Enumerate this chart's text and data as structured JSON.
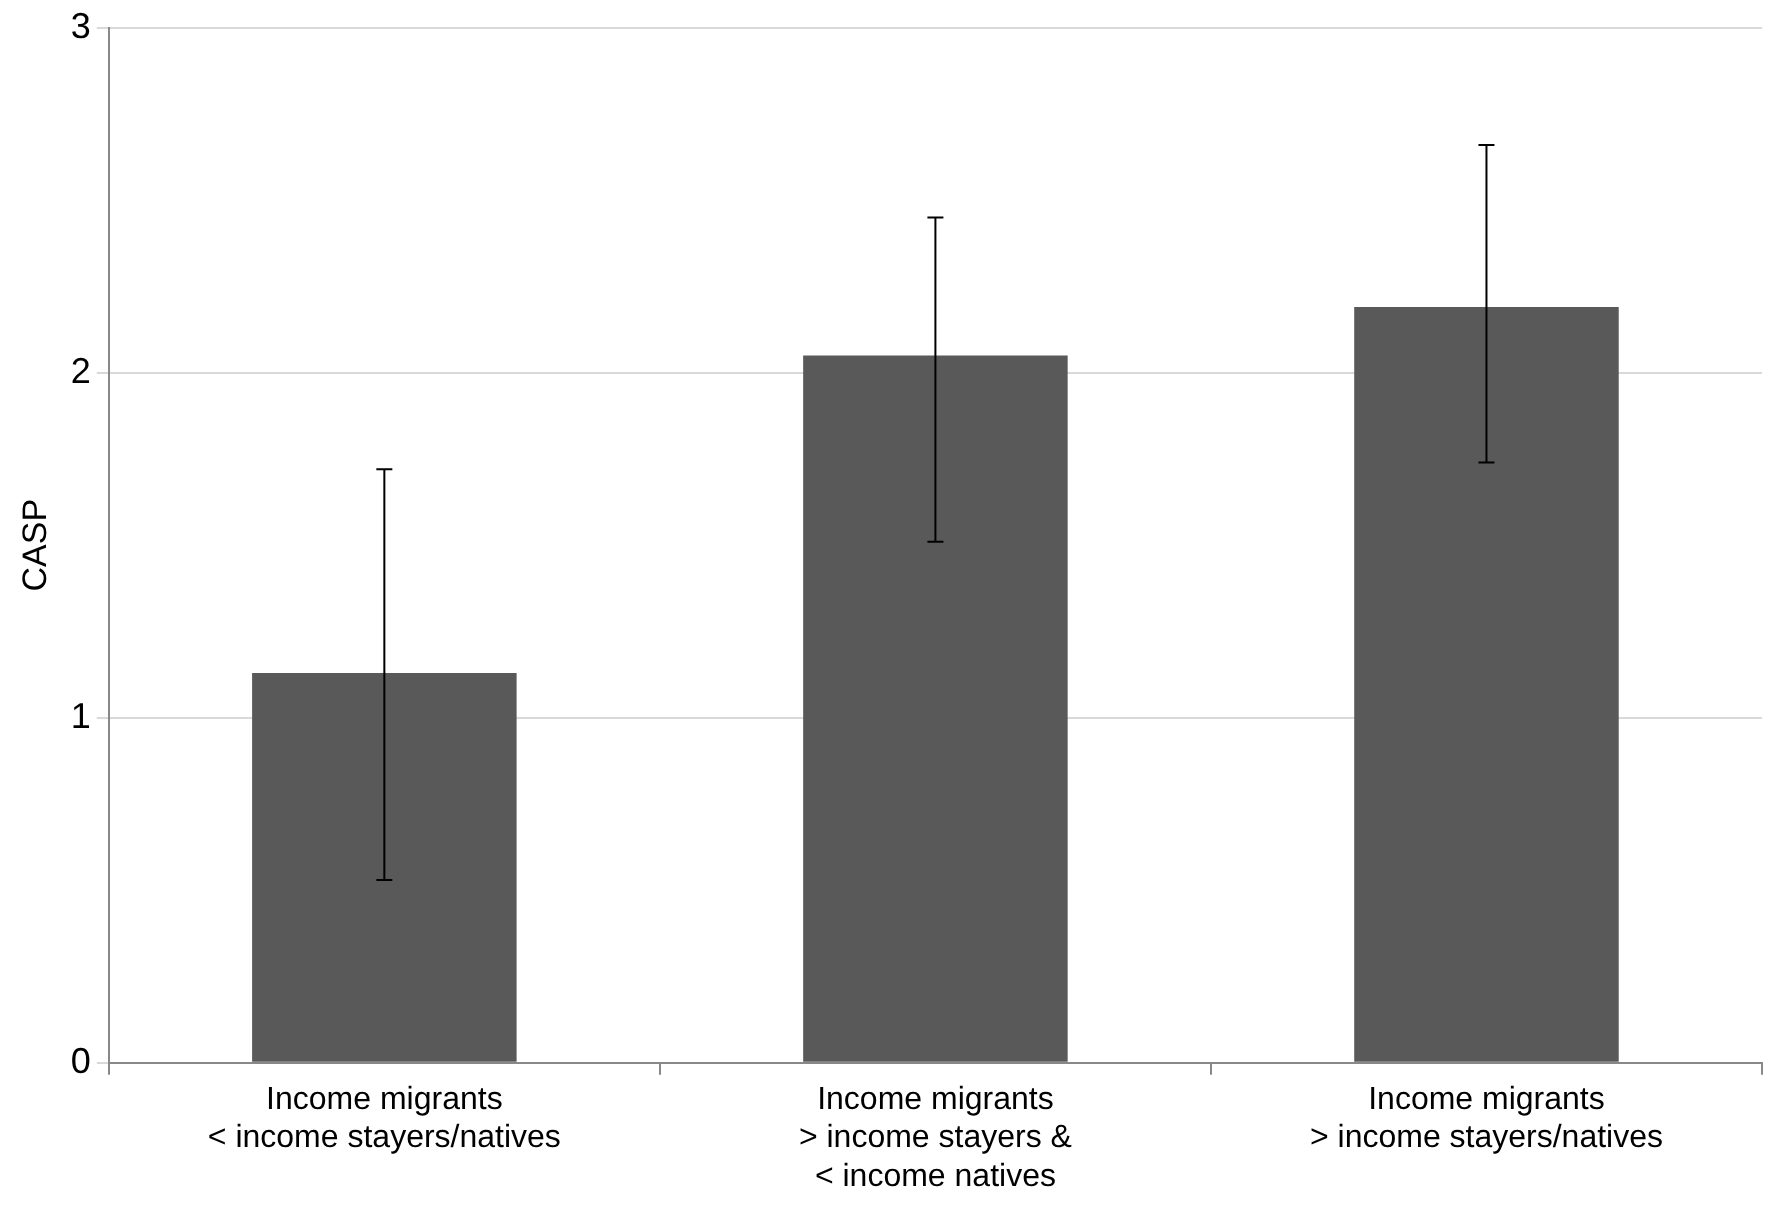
{
  "chart_data": {
    "type": "bar",
    "ylabel": "CASP",
    "categories": [
      "Income migrants\n< income stayers/natives",
      "Income migrants\n> income stayers &\n< income natives",
      "Income migrants\n> income stayers/natives"
    ],
    "values": [
      1.13,
      2.05,
      2.19
    ],
    "errors": [
      [
        0.53,
        1.72
      ],
      [
        1.51,
        2.45
      ],
      [
        1.74,
        2.66
      ]
    ],
    "color": "#595959",
    "ylim": [
      0,
      3
    ],
    "yticks": [
      0,
      1,
      2,
      3
    ],
    "grid": "y",
    "legend": false
  }
}
